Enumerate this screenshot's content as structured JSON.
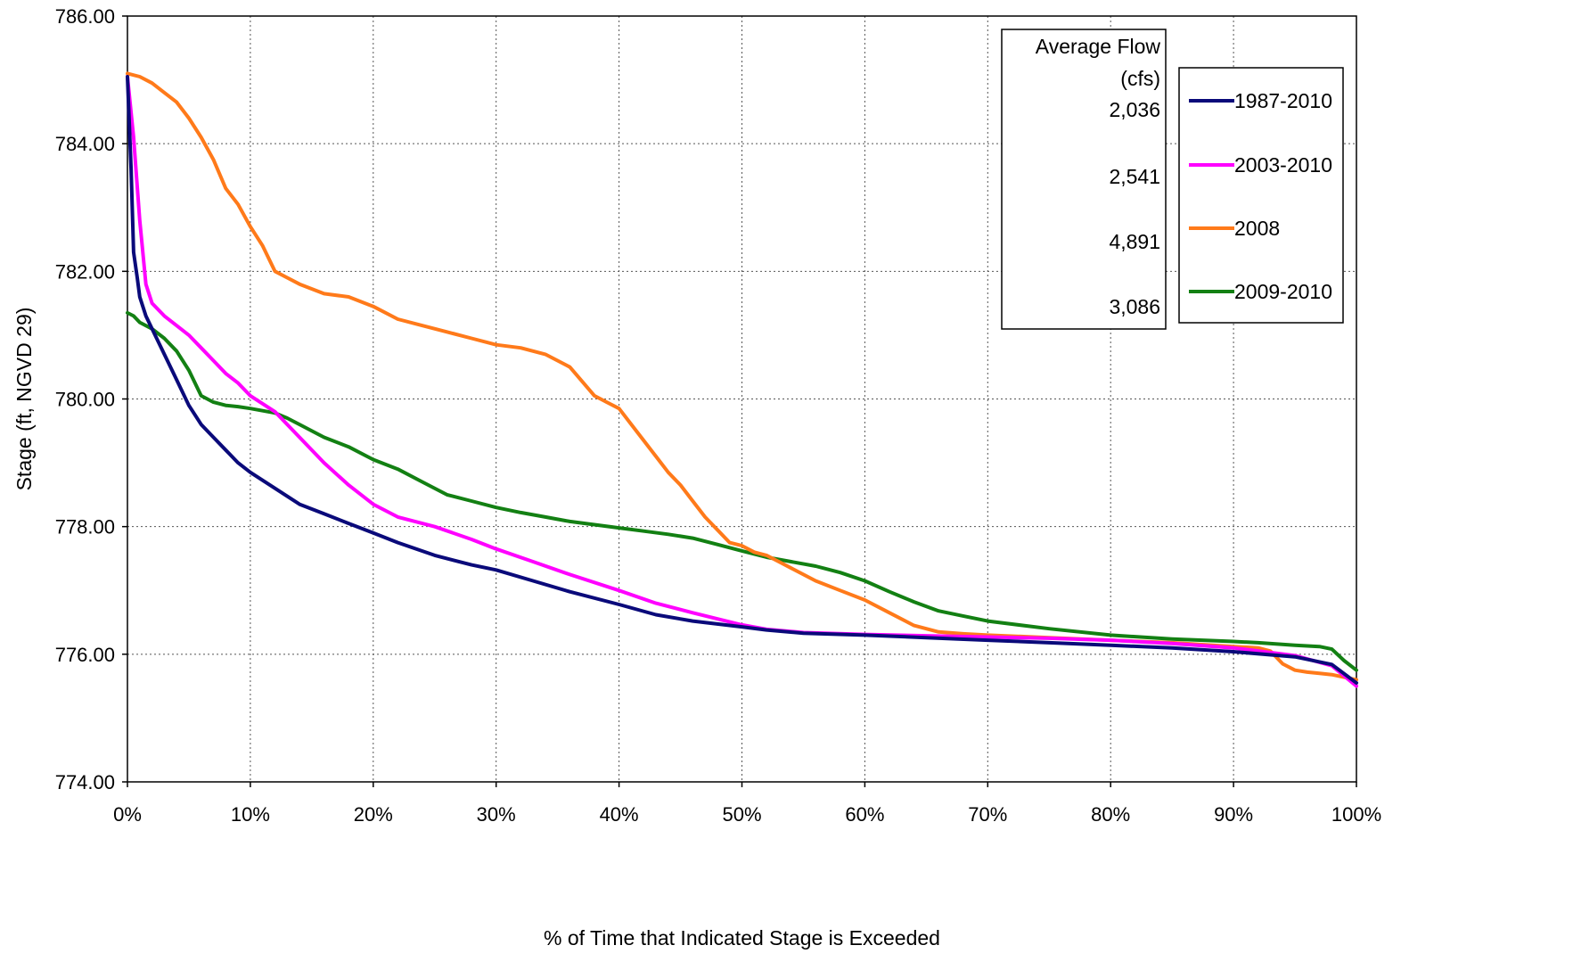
{
  "chart_data": {
    "type": "line",
    "title": "",
    "xlabel": "% of Time that Indicated Stage is Exceeded",
    "ylabel": "Stage (ft, NGVD 29)",
    "xlim": [
      0,
      100
    ],
    "ylim": [
      774,
      786
    ],
    "x_ticks": [
      0,
      10,
      20,
      30,
      40,
      50,
      60,
      70,
      80,
      90,
      100
    ],
    "x_tick_labels": [
      "0%",
      "10%",
      "20%",
      "30%",
      "40%",
      "50%",
      "60%",
      "70%",
      "80%",
      "90%",
      "100%"
    ],
    "y_ticks": [
      774,
      776,
      778,
      780,
      782,
      784,
      786
    ],
    "y_tick_labels": [
      "774.00",
      "776.00",
      "778.00",
      "780.00",
      "782.00",
      "784.00",
      "786.00"
    ],
    "grid": true,
    "legend_position": "top-right",
    "flow_box": {
      "title_line1": "Average Flow",
      "title_line2": "(cfs)",
      "values": [
        "2,036",
        "2,541",
        "4,891",
        "3,086"
      ]
    },
    "series": [
      {
        "name": "1987-2010",
        "color": "#0a0a7a",
        "x": [
          0,
          0.3,
          0.5,
          0.8,
          1,
          1.5,
          2,
          3,
          4,
          5,
          6,
          7,
          8,
          9,
          10,
          12,
          14,
          16,
          18,
          20,
          22,
          25,
          28,
          30,
          33,
          36,
          40,
          43,
          46,
          50,
          52,
          55,
          60,
          65,
          70,
          75,
          80,
          85,
          90,
          95,
          98,
          100
        ],
        "y": [
          785.05,
          783.6,
          782.3,
          781.9,
          781.6,
          781.3,
          781.1,
          780.7,
          780.3,
          779.9,
          779.6,
          779.4,
          779.2,
          779.0,
          778.85,
          778.6,
          778.35,
          778.2,
          778.05,
          777.9,
          777.75,
          777.55,
          777.4,
          777.32,
          777.15,
          776.98,
          776.78,
          776.62,
          776.52,
          776.43,
          776.38,
          776.33,
          776.3,
          776.26,
          776.22,
          776.18,
          776.14,
          776.1,
          776.04,
          775.96,
          775.84,
          775.55
        ]
      },
      {
        "name": "2003-2010",
        "color": "#ff00ff",
        "x": [
          0,
          0.5,
          1,
          1.5,
          2,
          3,
          4,
          5,
          6,
          7,
          8,
          9,
          10,
          12,
          14,
          16,
          18,
          20,
          22,
          25,
          28,
          30,
          33,
          36,
          40,
          43,
          46,
          50,
          52,
          55,
          60,
          65,
          70,
          75,
          80,
          85,
          90,
          95,
          98,
          100
        ],
        "y": [
          785.05,
          784.1,
          782.8,
          781.8,
          781.5,
          781.3,
          781.15,
          781.0,
          780.8,
          780.6,
          780.4,
          780.25,
          780.05,
          779.8,
          779.4,
          779.0,
          778.65,
          778.35,
          778.15,
          778.0,
          777.8,
          777.65,
          777.45,
          777.25,
          777.0,
          776.8,
          776.65,
          776.46,
          776.39,
          776.34,
          776.31,
          776.29,
          776.27,
          776.25,
          776.22,
          776.17,
          776.1,
          775.98,
          775.82,
          775.5
        ]
      },
      {
        "name": "2008",
        "color": "#ff7a1a",
        "x": [
          0,
          1,
          2,
          3,
          4,
          5,
          6,
          7,
          8,
          9,
          10,
          11,
          12,
          13,
          14,
          16,
          18,
          20,
          22,
          24,
          26,
          28,
          30,
          32,
          34,
          36,
          38,
          39,
          40,
          41,
          42,
          43,
          44,
          45,
          46,
          47,
          48,
          49,
          50,
          51,
          52,
          53,
          54,
          56,
          58,
          60,
          62,
          64,
          66,
          68,
          70,
          75,
          80,
          85,
          90,
          92,
          93,
          94,
          95,
          96,
          97,
          98,
          100
        ],
        "y": [
          785.1,
          785.05,
          784.95,
          784.8,
          784.65,
          784.4,
          784.1,
          783.75,
          783.3,
          783.05,
          782.7,
          782.4,
          782.0,
          781.9,
          781.8,
          781.65,
          781.6,
          781.45,
          781.25,
          781.15,
          781.05,
          780.95,
          780.85,
          780.8,
          780.7,
          780.5,
          780.05,
          779.95,
          779.85,
          779.6,
          779.35,
          779.1,
          778.85,
          778.65,
          778.4,
          778.15,
          777.95,
          777.75,
          777.7,
          777.6,
          777.55,
          777.45,
          777.35,
          777.15,
          777.0,
          776.85,
          776.65,
          776.45,
          776.35,
          776.32,
          776.3,
          776.26,
          776.22,
          776.18,
          776.12,
          776.1,
          776.05,
          775.85,
          775.75,
          775.72,
          775.7,
          775.68,
          775.6
        ]
      },
      {
        "name": "2009-2010",
        "color": "#138013",
        "x": [
          0,
          0.5,
          1,
          2,
          3,
          4,
          5,
          6,
          7,
          8,
          9,
          10,
          12,
          13,
          14,
          16,
          18,
          20,
          22,
          24,
          26,
          28,
          30,
          32,
          34,
          36,
          38,
          40,
          42,
          44,
          46,
          48,
          50,
          52,
          54,
          56,
          58,
          60,
          62,
          64,
          66,
          68,
          70,
          75,
          80,
          85,
          90,
          92,
          95,
          97,
          98,
          99,
          100
        ],
        "y": [
          781.35,
          781.3,
          781.2,
          781.1,
          780.95,
          780.75,
          780.45,
          780.05,
          779.95,
          779.9,
          779.88,
          779.85,
          779.78,
          779.7,
          779.6,
          779.4,
          779.25,
          779.05,
          778.9,
          778.7,
          778.5,
          778.4,
          778.3,
          778.22,
          778.15,
          778.08,
          778.03,
          777.98,
          777.93,
          777.88,
          777.82,
          777.72,
          777.62,
          777.52,
          777.45,
          777.38,
          777.28,
          777.15,
          776.98,
          776.82,
          776.68,
          776.6,
          776.52,
          776.4,
          776.3,
          776.24,
          776.2,
          776.18,
          776.14,
          776.12,
          776.08,
          775.9,
          775.75
        ]
      }
    ]
  }
}
